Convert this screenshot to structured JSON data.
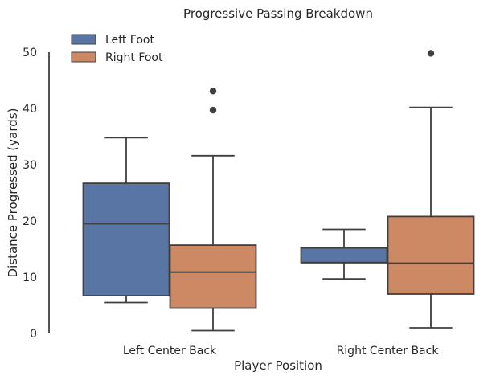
{
  "chart_data": {
    "type": "boxplot",
    "title": "Progressive Passing Breakdown",
    "xlabel": "Player Position",
    "ylabel": "Distance Progressed (yards)",
    "ylim": [
      0,
      50
    ],
    "yticks": [
      "0",
      "10",
      "20",
      "30",
      "40",
      "50"
    ],
    "categories": [
      "Left Center Back",
      "Right Center Back"
    ],
    "grid": false,
    "legend": "top-left",
    "series": [
      {
        "name": "Left Foot",
        "color": "#5975a4",
        "boxes": [
          {
            "whislo": 5.5,
            "q1": 6.7,
            "med": 19.5,
            "q3": 26.7,
            "whishi": 34.8,
            "fliers": []
          },
          {
            "whislo": 9.7,
            "q1": 12.6,
            "med": 12.6,
            "q3": 15.2,
            "whishi": 18.5,
            "fliers": []
          }
        ]
      },
      {
        "name": "Right Foot",
        "color": "#cc8963",
        "boxes": [
          {
            "whislo": 0.5,
            "q1": 4.5,
            "med": 10.9,
            "q3": 15.7,
            "whishi": 31.6,
            "fliers": [
              39.7,
              43.1
            ]
          },
          {
            "whislo": 1.0,
            "q1": 7.0,
            "med": 12.5,
            "q3": 20.8,
            "whishi": 40.2,
            "fliers": [
              49.8
            ]
          }
        ]
      }
    ]
  }
}
